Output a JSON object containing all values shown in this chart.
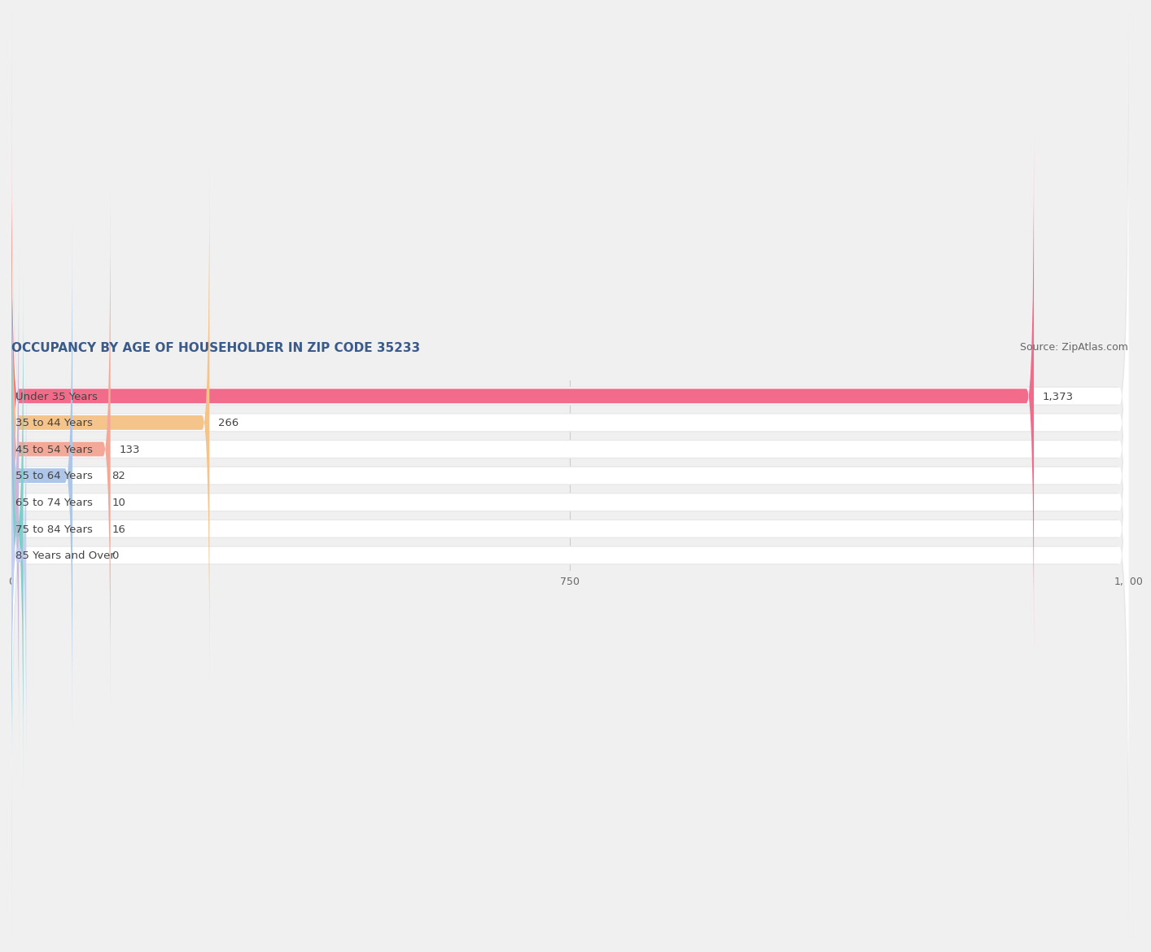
{
  "title": "OCCUPANCY BY AGE OF HOUSEHOLDER IN ZIP CODE 35233",
  "source": "Source: ZipAtlas.com",
  "categories": [
    "Under 35 Years",
    "35 to 44 Years",
    "45 to 54 Years",
    "55 to 64 Years",
    "65 to 74 Years",
    "75 to 84 Years",
    "85 Years and Over"
  ],
  "values": [
    1373,
    266,
    133,
    82,
    10,
    16,
    0
  ],
  "bar_colors": [
    "#f26b8a",
    "#f5c48a",
    "#f4a998",
    "#aec6e8",
    "#c9b8d8",
    "#7ececa",
    "#c5cff0"
  ],
  "xlim": [
    0,
    1500
  ],
  "xticks": [
    0,
    750,
    1500
  ],
  "xticklabels": [
    "0",
    "750",
    "1,500"
  ],
  "title_fontsize": 11,
  "source_fontsize": 9,
  "label_fontsize": 9.5,
  "value_fontsize": 9.5,
  "bar_height": 0.55,
  "background_color": "#f0f0f0",
  "bar_bg_color": "#ffffff",
  "row_bg_color": "#e8e8e8",
  "grid_color": "#cccccc"
}
